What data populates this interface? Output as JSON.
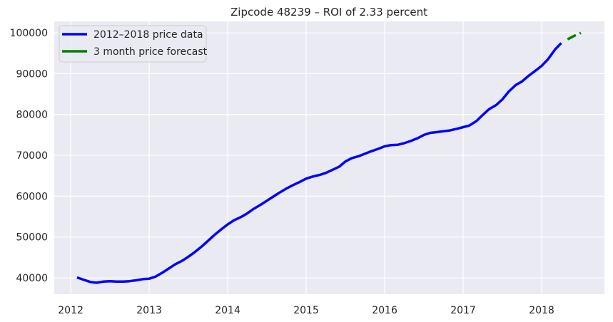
{
  "chart_data": {
    "type": "line",
    "title": "Zipcode 48239 – ROI of 2.33 percent",
    "xlabel": "",
    "ylabel": "",
    "xlim": [
      2011.79,
      2018.8
    ],
    "ylim": [
      36000,
      102800
    ],
    "x_ticks": [
      2012,
      2013,
      2014,
      2015,
      2016,
      2017,
      2018
    ],
    "x_tick_labels": [
      "2012",
      "2013",
      "2014",
      "2015",
      "2016",
      "2017",
      "2018"
    ],
    "y_ticks": [
      40000,
      50000,
      60000,
      70000,
      80000,
      90000,
      100000
    ],
    "y_tick_labels": [
      "40000",
      "50000",
      "60000",
      "70000",
      "80000",
      "90000",
      "100000"
    ],
    "grid": true,
    "background": "#eaeaf2",
    "legend_position": "top-left",
    "series": [
      {
        "name": "2012–2018 price data",
        "color": "#0000ff",
        "line_style": "solid",
        "x": [
          2012.08,
          2012.17,
          2012.25,
          2012.33,
          2012.42,
          2012.5,
          2012.58,
          2012.67,
          2012.75,
          2012.83,
          2012.92,
          2013.0,
          2013.08,
          2013.17,
          2013.25,
          2013.33,
          2013.42,
          2013.5,
          2013.58,
          2013.67,
          2013.75,
          2013.83,
          2013.92,
          2014.0,
          2014.08,
          2014.17,
          2014.25,
          2014.33,
          2014.42,
          2014.5,
          2014.58,
          2014.67,
          2014.75,
          2014.83,
          2014.92,
          2015.0,
          2015.08,
          2015.17,
          2015.25,
          2015.33,
          2015.42,
          2015.5,
          2015.58,
          2015.67,
          2015.75,
          2015.83,
          2015.92,
          2016.0,
          2016.08,
          2016.17,
          2016.25,
          2016.33,
          2016.42,
          2016.5,
          2016.58,
          2016.67,
          2016.75,
          2016.83,
          2016.92,
          2017.0,
          2017.08,
          2017.17,
          2017.25,
          2017.33,
          2017.42,
          2017.5,
          2017.58,
          2017.67,
          2017.75,
          2017.83,
          2017.92,
          2018.0,
          2018.08,
          2018.17,
          2018.25
        ],
        "y": [
          40100,
          39500,
          39000,
          38800,
          39100,
          39200,
          39100,
          39100,
          39200,
          39400,
          39700,
          39800,
          40300,
          41300,
          42300,
          43300,
          44200,
          45200,
          46300,
          47700,
          49100,
          50500,
          51900,
          53100,
          54100,
          54900,
          55800,
          56900,
          57900,
          58900,
          59900,
          61000,
          61900,
          62700,
          63500,
          64300,
          64800,
          65200,
          65700,
          66400,
          67200,
          68500,
          69300,
          69800,
          70400,
          71000,
          71600,
          72200,
          72500,
          72600,
          73000,
          73500,
          74200,
          75000,
          75500,
          75700,
          75900,
          76100,
          76500,
          76900,
          77300,
          78400,
          79900,
          81300,
          82300,
          83700,
          85600,
          87200,
          88100,
          89400,
          90700,
          91900,
          93500,
          95900,
          97500
        ]
      },
      {
        "name": "3 month price forecast",
        "color": "#008000",
        "line_style": "dashed",
        "x": [
          2018.33,
          2018.42,
          2018.5
        ],
        "y": [
          98400,
          99300,
          100000
        ]
      }
    ]
  }
}
